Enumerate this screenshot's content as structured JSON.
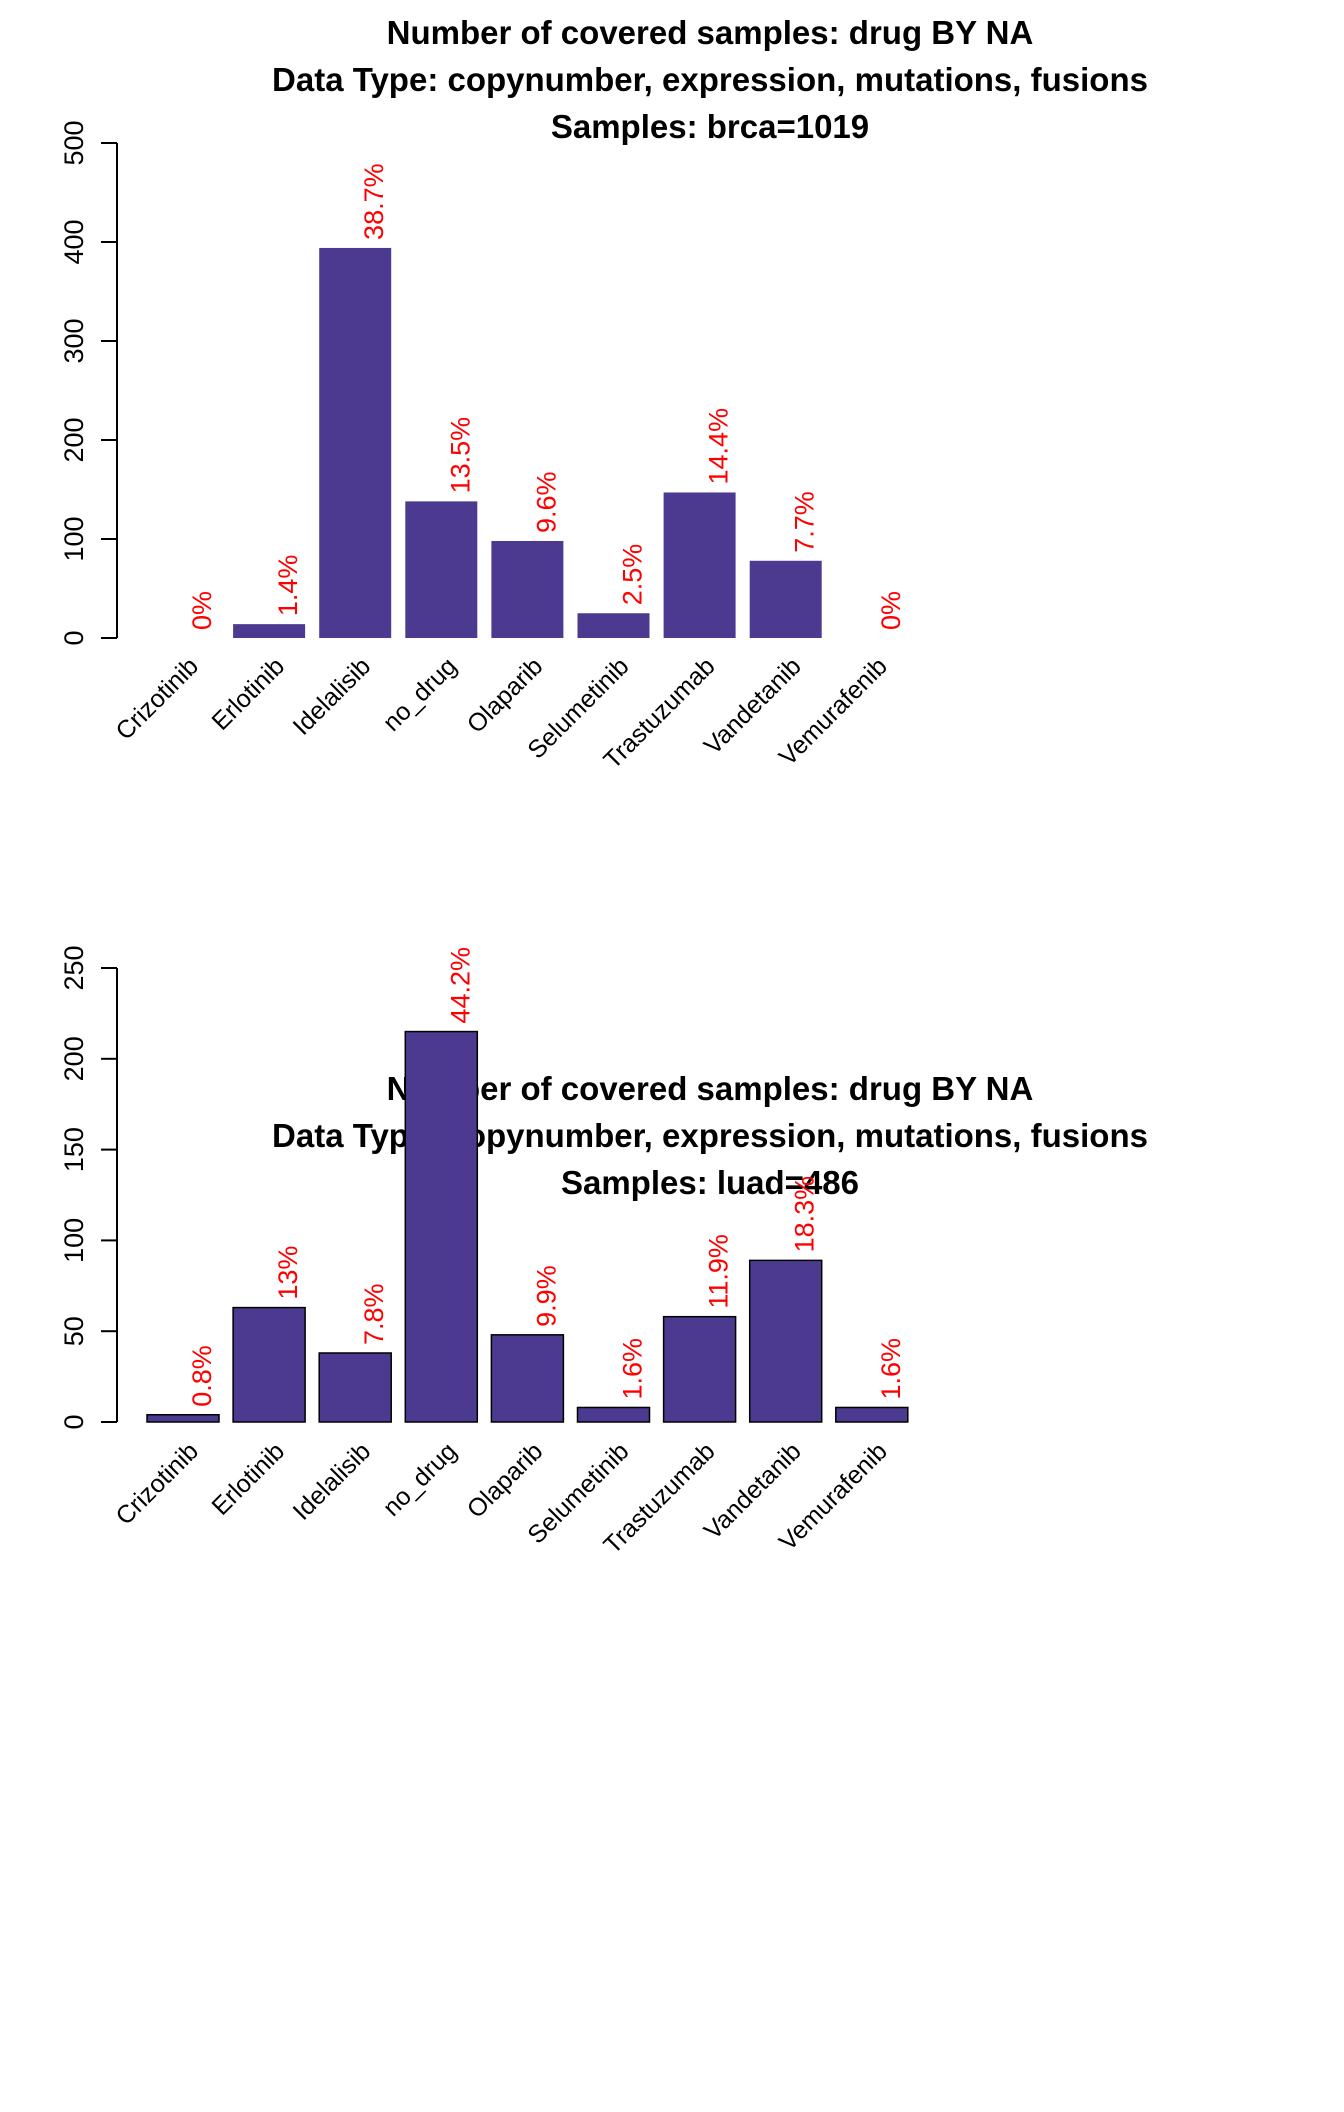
{
  "chart_data": [
    {
      "type": "bar",
      "title": "Number of covered samples: drug BY NA",
      "subtitle": "Data Type: copynumber, expression, mutations, fusions",
      "samples": "Samples: brca=1019",
      "categories": [
        "Crizotinib",
        "Erlotinib",
        "Idelalisib",
        "no_drug",
        "Olaparib",
        "Selumetinib",
        "Trastuzumab",
        "Vandetanib",
        "Vemurafenib"
      ],
      "values": [
        0,
        14,
        394,
        138,
        98,
        25,
        147,
        78,
        0
      ],
      "labels": [
        "0%",
        "1.4%",
        "38.7%",
        "13.5%",
        "9.6%",
        "2.5%",
        "14.4%",
        "7.7%",
        "0%"
      ],
      "yticks": [
        0,
        100,
        200,
        300,
        400,
        500
      ],
      "ylim": [
        0,
        500
      ],
      "bar_color": "#4b3a8f",
      "bar_border": "none",
      "label_color": "#ff0000",
      "xlabel": "",
      "ylabel": "",
      "grid": false,
      "legend": false
    },
    {
      "type": "bar",
      "title": "Number of covered samples: drug BY NA",
      "subtitle": "Data Type: copynumber, expression, mutations, fusions",
      "samples": "Samples: luad=486",
      "categories": [
        "Crizotinib",
        "Erlotinib",
        "Idelalisib",
        "no_drug",
        "Olaparib",
        "Selumetinib",
        "Trastuzumab",
        "Vandetanib",
        "Vemurafenib"
      ],
      "values": [
        4,
        63,
        38,
        215,
        48,
        8,
        58,
        89,
        8
      ],
      "labels": [
        "0.8%",
        "13%",
        "7.8%",
        "44.2%",
        "9.9%",
        "1.6%",
        "11.9%",
        "18.3%",
        "1.6%"
      ],
      "yticks": [
        0,
        50,
        100,
        150,
        200,
        250
      ],
      "ylim": [
        0,
        250
      ],
      "bar_color": "#4b3a8f",
      "bar_border": "#000000",
      "label_color": "#ff0000",
      "xlabel": "",
      "ylabel": "",
      "grid": false,
      "legend": false
    }
  ]
}
